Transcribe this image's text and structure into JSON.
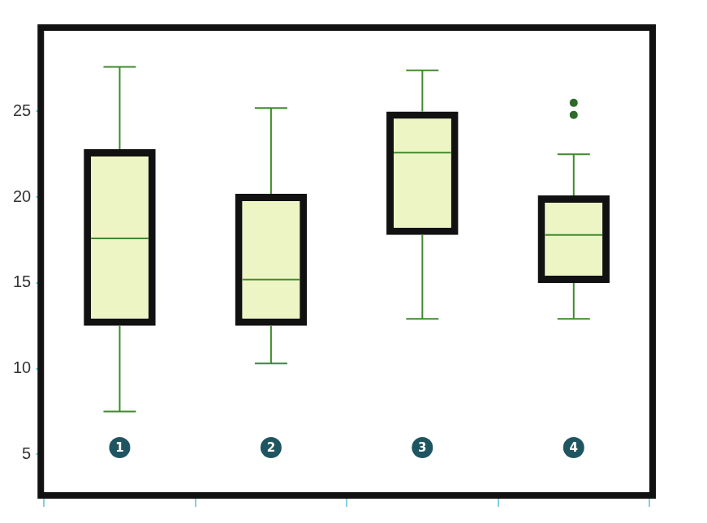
{
  "chart_data": {
    "type": "box",
    "categories": [
      "1",
      "2",
      "3",
      "4"
    ],
    "boxes": [
      {
        "min": 7.5,
        "q1": 12.5,
        "median": 17.6,
        "q3": 22.8,
        "max": 27.6,
        "outliers": []
      },
      {
        "min": 10.3,
        "q1": 12.5,
        "median": 15.2,
        "q3": 20.2,
        "max": 25.2,
        "outliers": []
      },
      {
        "min": 12.9,
        "q1": 17.8,
        "median": 22.6,
        "q3": 25.0,
        "max": 27.4,
        "outliers": []
      },
      {
        "min": 12.9,
        "q1": 15.0,
        "median": 17.8,
        "q3": 20.1,
        "max": 22.5,
        "outliers": [
          25.5,
          24.8
        ]
      }
    ],
    "color": "#eef5c4",
    "ylim": [
      2.8,
      29.7
    ],
    "yticks": [
      5,
      10,
      15,
      20,
      25
    ],
    "grid": false
  }
}
